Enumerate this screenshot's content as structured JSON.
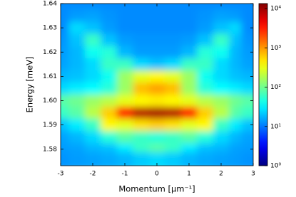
{
  "chart_data": {
    "type": "heatmap",
    "xlabel": "Momentum [μm⁻¹]",
    "ylabel": "Energy [meV]",
    "xlim": [
      -3,
      3
    ],
    "ylim": [
      1.5732,
      1.64
    ],
    "xticks": [
      -3,
      -2,
      -1,
      0,
      1,
      2,
      3
    ],
    "yticks": [
      1.58,
      1.59,
      {
        "value": 1.6,
        "label": "1.60"
      },
      1.61,
      1.62,
      1.63,
      1.64
    ],
    "colormap": "jet",
    "x": [
      -3,
      -2.5,
      -2,
      -1.5,
      -1,
      -0.5,
      0,
      0.5,
      1,
      1.5,
      2,
      2.5,
      3
    ],
    "y": [
      1.64,
      1.635,
      1.63,
      1.625,
      1.62,
      1.615,
      1.61,
      1.605,
      1.6,
      1.595,
      1.59,
      1.585,
      1.58,
      1.575
    ],
    "z": [
      [
        12,
        12,
        12,
        12,
        12,
        12,
        12,
        12,
        12,
        12,
        12,
        12,
        12
      ],
      [
        12,
        14,
        15,
        13,
        12,
        12,
        12,
        12,
        12,
        13,
        15,
        14,
        12
      ],
      [
        12,
        25,
        20,
        14,
        12,
        12,
        12,
        12,
        12,
        14,
        20,
        25,
        12
      ],
      [
        13,
        20,
        60,
        20,
        14,
        13,
        13,
        13,
        14,
        20,
        60,
        20,
        13
      ],
      [
        14,
        18,
        40,
        50,
        18,
        14,
        14,
        14,
        18,
        50,
        40,
        18,
        14
      ],
      [
        15,
        18,
        25,
        60,
        60,
        25,
        20,
        25,
        60,
        60,
        25,
        18,
        15
      ],
      [
        18,
        20,
        25,
        40,
        150,
        300,
        400,
        300,
        150,
        40,
        25,
        20,
        18
      ],
      [
        25,
        30,
        35,
        50,
        150,
        700,
        900,
        700,
        150,
        50,
        35,
        30,
        25
      ],
      [
        80,
        100,
        150,
        200,
        300,
        400,
        450,
        400,
        300,
        200,
        150,
        100,
        80
      ],
      [
        60,
        80,
        200,
        600,
        4000,
        8000,
        9000,
        8000,
        4000,
        600,
        200,
        80,
        60
      ],
      [
        20,
        30,
        60,
        400,
        300,
        500,
        600,
        500,
        300,
        400,
        60,
        30,
        20
      ],
      [
        15,
        18,
        25,
        50,
        80,
        60,
        50,
        60,
        80,
        50,
        25,
        18,
        15
      ],
      [
        14,
        15,
        18,
        20,
        30,
        60,
        80,
        60,
        30,
        20,
        18,
        15,
        14
      ],
      [
        13,
        14,
        15,
        16,
        18,
        22,
        25,
        22,
        18,
        16,
        15,
        14,
        13
      ]
    ],
    "colorbar": {
      "scale": "log",
      "lim": [
        1,
        13400
      ],
      "ticks": [
        {
          "value": 1,
          "label": "10⁰"
        },
        {
          "value": 10,
          "label": "10¹"
        },
        {
          "value": 100,
          "label": "10²"
        },
        {
          "value": 1000,
          "label": "10³"
        },
        {
          "value": 10000,
          "label": "10⁴"
        }
      ]
    }
  }
}
